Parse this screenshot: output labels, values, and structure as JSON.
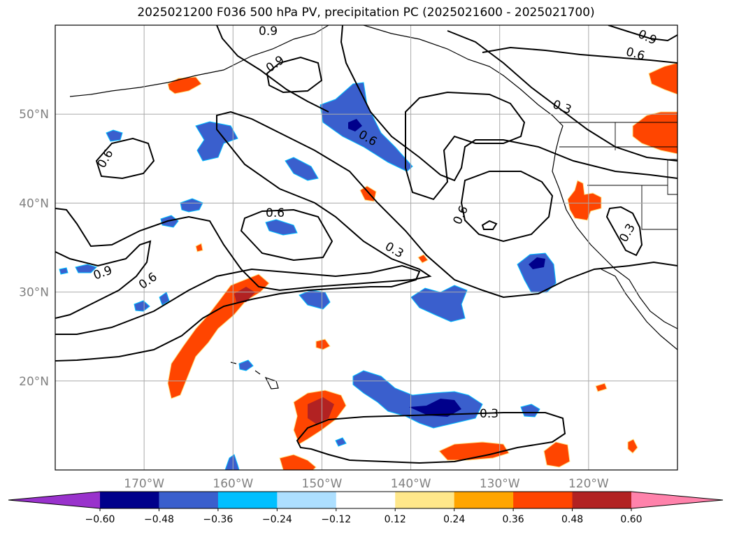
{
  "chart_data": {
    "type": "heatmap",
    "title": "2025021200 F036 500 hPa PV, precipitation PC (2025021600 - 2025021700)",
    "map": {
      "lon_range": [
        -180,
        -110
      ],
      "lat_range": [
        10,
        60
      ],
      "lon_ticks": [
        -170,
        -160,
        -150,
        -140,
        -130,
        -120
      ],
      "lon_tick_labels": [
        "170°W",
        "160°W",
        "150°W",
        "140°W",
        "130°W",
        "120°W"
      ],
      "lat_ticks": [
        20,
        30,
        40,
        50
      ],
      "lat_tick_labels": [
        "20°N",
        "30°N",
        "40°N",
        "50°N"
      ],
      "grid": true
    },
    "contours": {
      "field": "500 hPa PV",
      "levels": [
        0.3,
        0.6,
        0.9
      ],
      "labels": [
        "0.9",
        "0.9",
        "0.6",
        "0.3",
        "0.6",
        "0.6",
        "0.9",
        "0.6",
        "0.3",
        "0.3",
        "0.6",
        "0.9",
        "0.6",
        "0.3"
      ]
    },
    "colorbar": {
      "orientation": "horizontal",
      "extend": "both",
      "boundaries": [
        -0.6,
        -0.48,
        -0.36,
        -0.24,
        -0.12,
        0.12,
        0.24,
        0.36,
        0.48,
        0.6
      ],
      "tick_labels": [
        "−0.60",
        "−0.48",
        "−0.36",
        "−0.24",
        "−0.12",
        "0.12",
        "0.24",
        "0.36",
        "0.48",
        "0.60"
      ],
      "colors": [
        "#9932CC",
        "#00008B",
        "#3A5FCD",
        "#00BFFF",
        "#ADDFFF",
        "#FFFFFF",
        "#FFE78A",
        "#FFA500",
        "#FF4500",
        "#B22222",
        "#FF82AB"
      ]
    }
  }
}
